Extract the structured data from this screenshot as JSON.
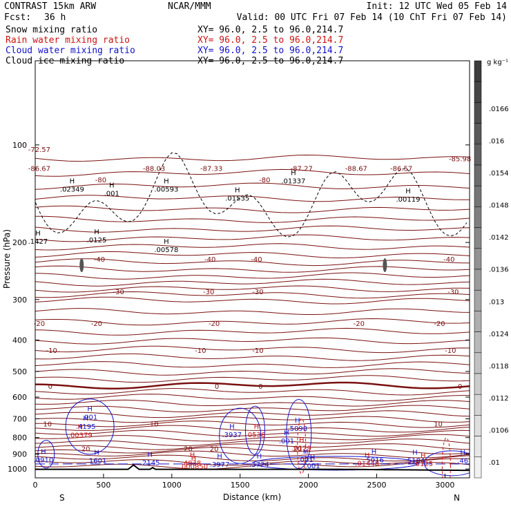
{
  "header": {
    "title": "CONTRAST 15km ARW",
    "producer": "NCAR/MMM",
    "init": "Init: 12 UTC Wed 05 Feb 14",
    "fcst_label": "Fcst:",
    "fcst_value": "36 h",
    "valid": "Valid: 00 UTC Fri 07 Feb 14 (10 ChT Fri 07 Feb 14)"
  },
  "fields": [
    {
      "name": "Snow mixing ratio",
      "xy": "",
      "color": "#000000"
    },
    {
      "name": "Rain water mixing ratio",
      "xy": "XY=  96.0,  2.5 to  96.0,214.7",
      "color": "#cc1111"
    },
    {
      "name": "Cloud water mixing ratio",
      "xy": "XY=  96.0,  2.5 to  96.0,214.7",
      "color": "#1111cc"
    },
    {
      "name": "Cloud ice mixing ratio",
      "xy": "XY=  96.0,  2.5 to  96.0,214.7",
      "color": "#000000"
    }
  ],
  "snow_xy": "XY=  96.0,  2.5 to  96.0,214.7",
  "colors": {
    "temperature": "#7a1010",
    "cloud_water": "#1111cc",
    "rain_water": "#cc1111",
    "cloud_ice": "#000000"
  },
  "chart_data": {
    "type": "cross-section contour",
    "xlabel": "Distance (km)",
    "ylabel": "Pressure (hPa)",
    "x_ticks": [
      0,
      500,
      1000,
      1500,
      2000,
      2500,
      3000
    ],
    "y_ticks": [
      100,
      200,
      300,
      400,
      500,
      600,
      700,
      800,
      900,
      1000
    ],
    "xlim": [
      0,
      3180
    ],
    "ylim": [
      1065,
      55
    ],
    "y_scale": "log",
    "left_end_label": "S",
    "right_end_label": "N",
    "colorbar": {
      "unit": "g kg⁻¹",
      "ticks": [
        ".0166",
        ".016",
        ".0154",
        ".0148",
        ".0142",
        ".0136",
        ".013",
        ".0124",
        ".0118",
        ".0112",
        ".0106",
        ".01"
      ]
    },
    "temperature_isotherms": [
      {
        "label": "-72.57",
        "p": 103,
        "x": 30
      },
      {
        "label": "-86.67",
        "p": 118,
        "x": 30
      },
      {
        "label": "-88.03",
        "p": 118,
        "x": 870
      },
      {
        "label": "-87.33",
        "p": 118,
        "x": 1290
      },
      {
        "label": "-87.27",
        "p": 118,
        "x": 1950
      },
      {
        "label": "-88.67",
        "p": 118,
        "x": 2350
      },
      {
        "label": "-86.57",
        "p": 118,
        "x": 2680
      },
      {
        "label": "-85.98",
        "p": 110,
        "x": 3110
      },
      {
        "label": "-80",
        "p": 128,
        "x": 480
      },
      {
        "label": "-80",
        "p": 128,
        "x": 1680
      },
      {
        "label": "-40",
        "p": 225,
        "x": 470
      },
      {
        "label": "-40",
        "p": 225,
        "x": 1280
      },
      {
        "label": "-40",
        "p": 225,
        "x": 1620
      },
      {
        "label": "-40",
        "p": 225,
        "x": 3030
      },
      {
        "label": "-30",
        "p": 283,
        "x": 610
      },
      {
        "label": "-30",
        "p": 283,
        "x": 1270
      },
      {
        "label": "-30",
        "p": 283,
        "x": 1630
      },
      {
        "label": "-30",
        "p": 283,
        "x": 3060
      },
      {
        "label": "-20",
        "p": 355,
        "x": 30
      },
      {
        "label": "-20",
        "p": 355,
        "x": 450
      },
      {
        "label": "-20",
        "p": 355,
        "x": 1310
      },
      {
        "label": "-20",
        "p": 355,
        "x": 2370
      },
      {
        "label": "-20",
        "p": 355,
        "x": 2960
      },
      {
        "label": "-10",
        "p": 430,
        "x": 120
      },
      {
        "label": "-10",
        "p": 430,
        "x": 1210
      },
      {
        "label": "-10",
        "p": 430,
        "x": 1630
      },
      {
        "label": "-10",
        "p": 430,
        "x": 3040
      },
      {
        "label": "0",
        "p": 555,
        "x": 110
      },
      {
        "label": "0",
        "p": 555,
        "x": 1330
      },
      {
        "label": "0",
        "p": 555,
        "x": 1650
      },
      {
        "label": "0",
        "p": 555,
        "x": 3110
      },
      {
        "label": "10",
        "p": 725,
        "x": 90
      },
      {
        "label": "10",
        "p": 725,
        "x": 870
      },
      {
        "label": "10",
        "p": 725,
        "x": 2950
      },
      {
        "label": "20",
        "p": 865,
        "x": 370
      },
      {
        "label": "20",
        "p": 865,
        "x": 1120
      },
      {
        "label": "20",
        "p": 865,
        "x": 1310
      },
      {
        "label": "20",
        "p": 865,
        "x": 1920
      }
    ],
    "cloud_ice_maxima": [
      {
        "label": ".02349",
        "p": 138,
        "x": 270
      },
      {
        "label": ".001",
        "p": 142,
        "x": 560
      },
      {
        "label": ".00593",
        "p": 138,
        "x": 960
      },
      {
        "label": ".01535",
        "p": 147,
        "x": 1480
      },
      {
        "label": ".01337",
        "p": 130,
        "x": 1890
      },
      {
        "label": ".00119",
        "p": 148,
        "x": 2730
      },
      {
        "label": ".1427",
        "p": 200,
        "x": 20
      },
      {
        "label": ".0125",
        "p": 198,
        "x": 450
      },
      {
        "label": ".00578",
        "p": 212,
        "x": 960
      }
    ],
    "cloud_water_maxima": [
      {
        "label": ".001",
        "p": 697,
        "x": 400
      },
      {
        "label": ".4195",
        "p": 745,
        "x": 370
      },
      {
        "label": ".3937",
        "p": 790,
        "x": 1440
      },
      {
        "label": ".5098",
        "p": 755,
        "x": 1920
      },
      {
        "label": ".001",
        "p": 825,
        "x": 1840
      },
      {
        "label": ".0910",
        "p": 945,
        "x": 60
      },
      {
        "label": ".1601",
        "p": 950,
        "x": 450
      },
      {
        "label": ".2145",
        "p": 962,
        "x": 840
      },
      {
        "label": ".3977",
        "p": 976,
        "x": 1350
      },
      {
        "label": ".3724",
        "p": 976,
        "x": 1640
      },
      {
        "label": ".001",
        "p": 942,
        "x": 1980
      },
      {
        "label": ".001",
        "p": 985,
        "x": 2030
      },
      {
        "label": ".5016",
        "p": 945,
        "x": 2480
      },
      {
        "label": ".5184",
        "p": 950,
        "x": 2780
      },
      {
        "label": ".46",
        "p": 950,
        "x": 3130
      }
    ],
    "rain_water_maxima": [
      {
        "label": ".00379",
        "p": 792,
        "x": 330
      },
      {
        "label": "0536",
        "p": 790,
        "x": 1620
      },
      {
        "label": ".0129",
        "p": 868,
        "x": 1950
      },
      {
        "label": "4938",
        "p": 965,
        "x": 1150
      },
      {
        "label": ".000850",
        "p": 990,
        "x": 1160
      },
      {
        "label": ".01448",
        "p": 968,
        "x": 2430
      },
      {
        "label": ".0125",
        "p": 970,
        "x": 2840
      }
    ]
  }
}
